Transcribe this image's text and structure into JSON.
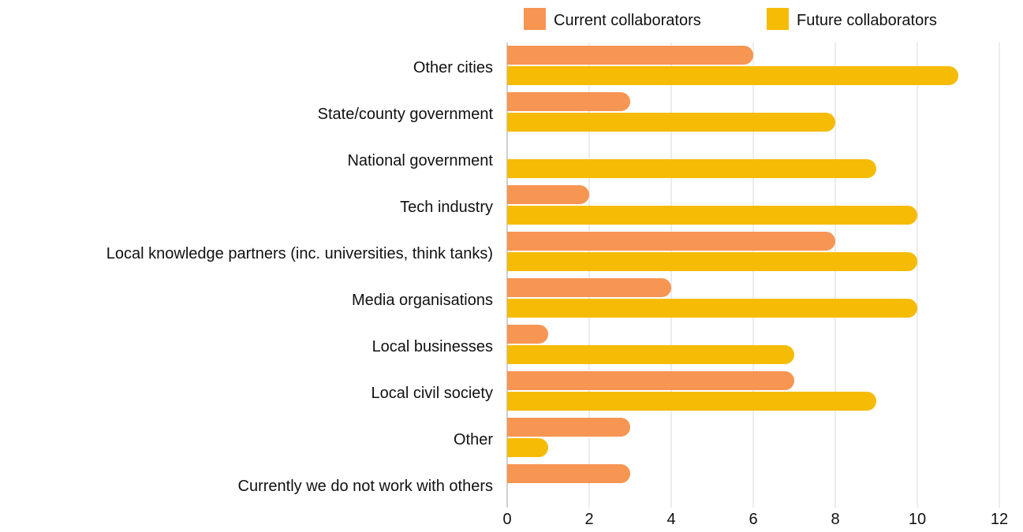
{
  "chart_data": {
    "type": "bar",
    "orientation": "horizontal",
    "categories": [
      "Other cities",
      "State/county government",
      "National government",
      "Tech industry",
      "Local knowledge partners (inc. universities, think tanks)",
      "Media organisations",
      "Local businesses",
      "Local civil society",
      "Other",
      "Currently we do not work with others"
    ],
    "series": [
      {
        "name": "Current collaborators",
        "color": "#F79552",
        "values": [
          6,
          3,
          0,
          2,
          8,
          4,
          1,
          7,
          3,
          3
        ]
      },
      {
        "name": "Future collaborators",
        "color": "#F6BB04",
        "values": [
          11,
          8,
          9,
          10,
          10,
          10,
          7,
          9,
          1,
          0
        ]
      }
    ],
    "xlim": [
      0,
      12
    ],
    "xticks": [
      "0",
      "2",
      "4",
      "6",
      "8",
      "10",
      "12"
    ],
    "grid": "vertical",
    "legend": "top-right",
    "title": "",
    "xlabel": "",
    "ylabel": ""
  }
}
